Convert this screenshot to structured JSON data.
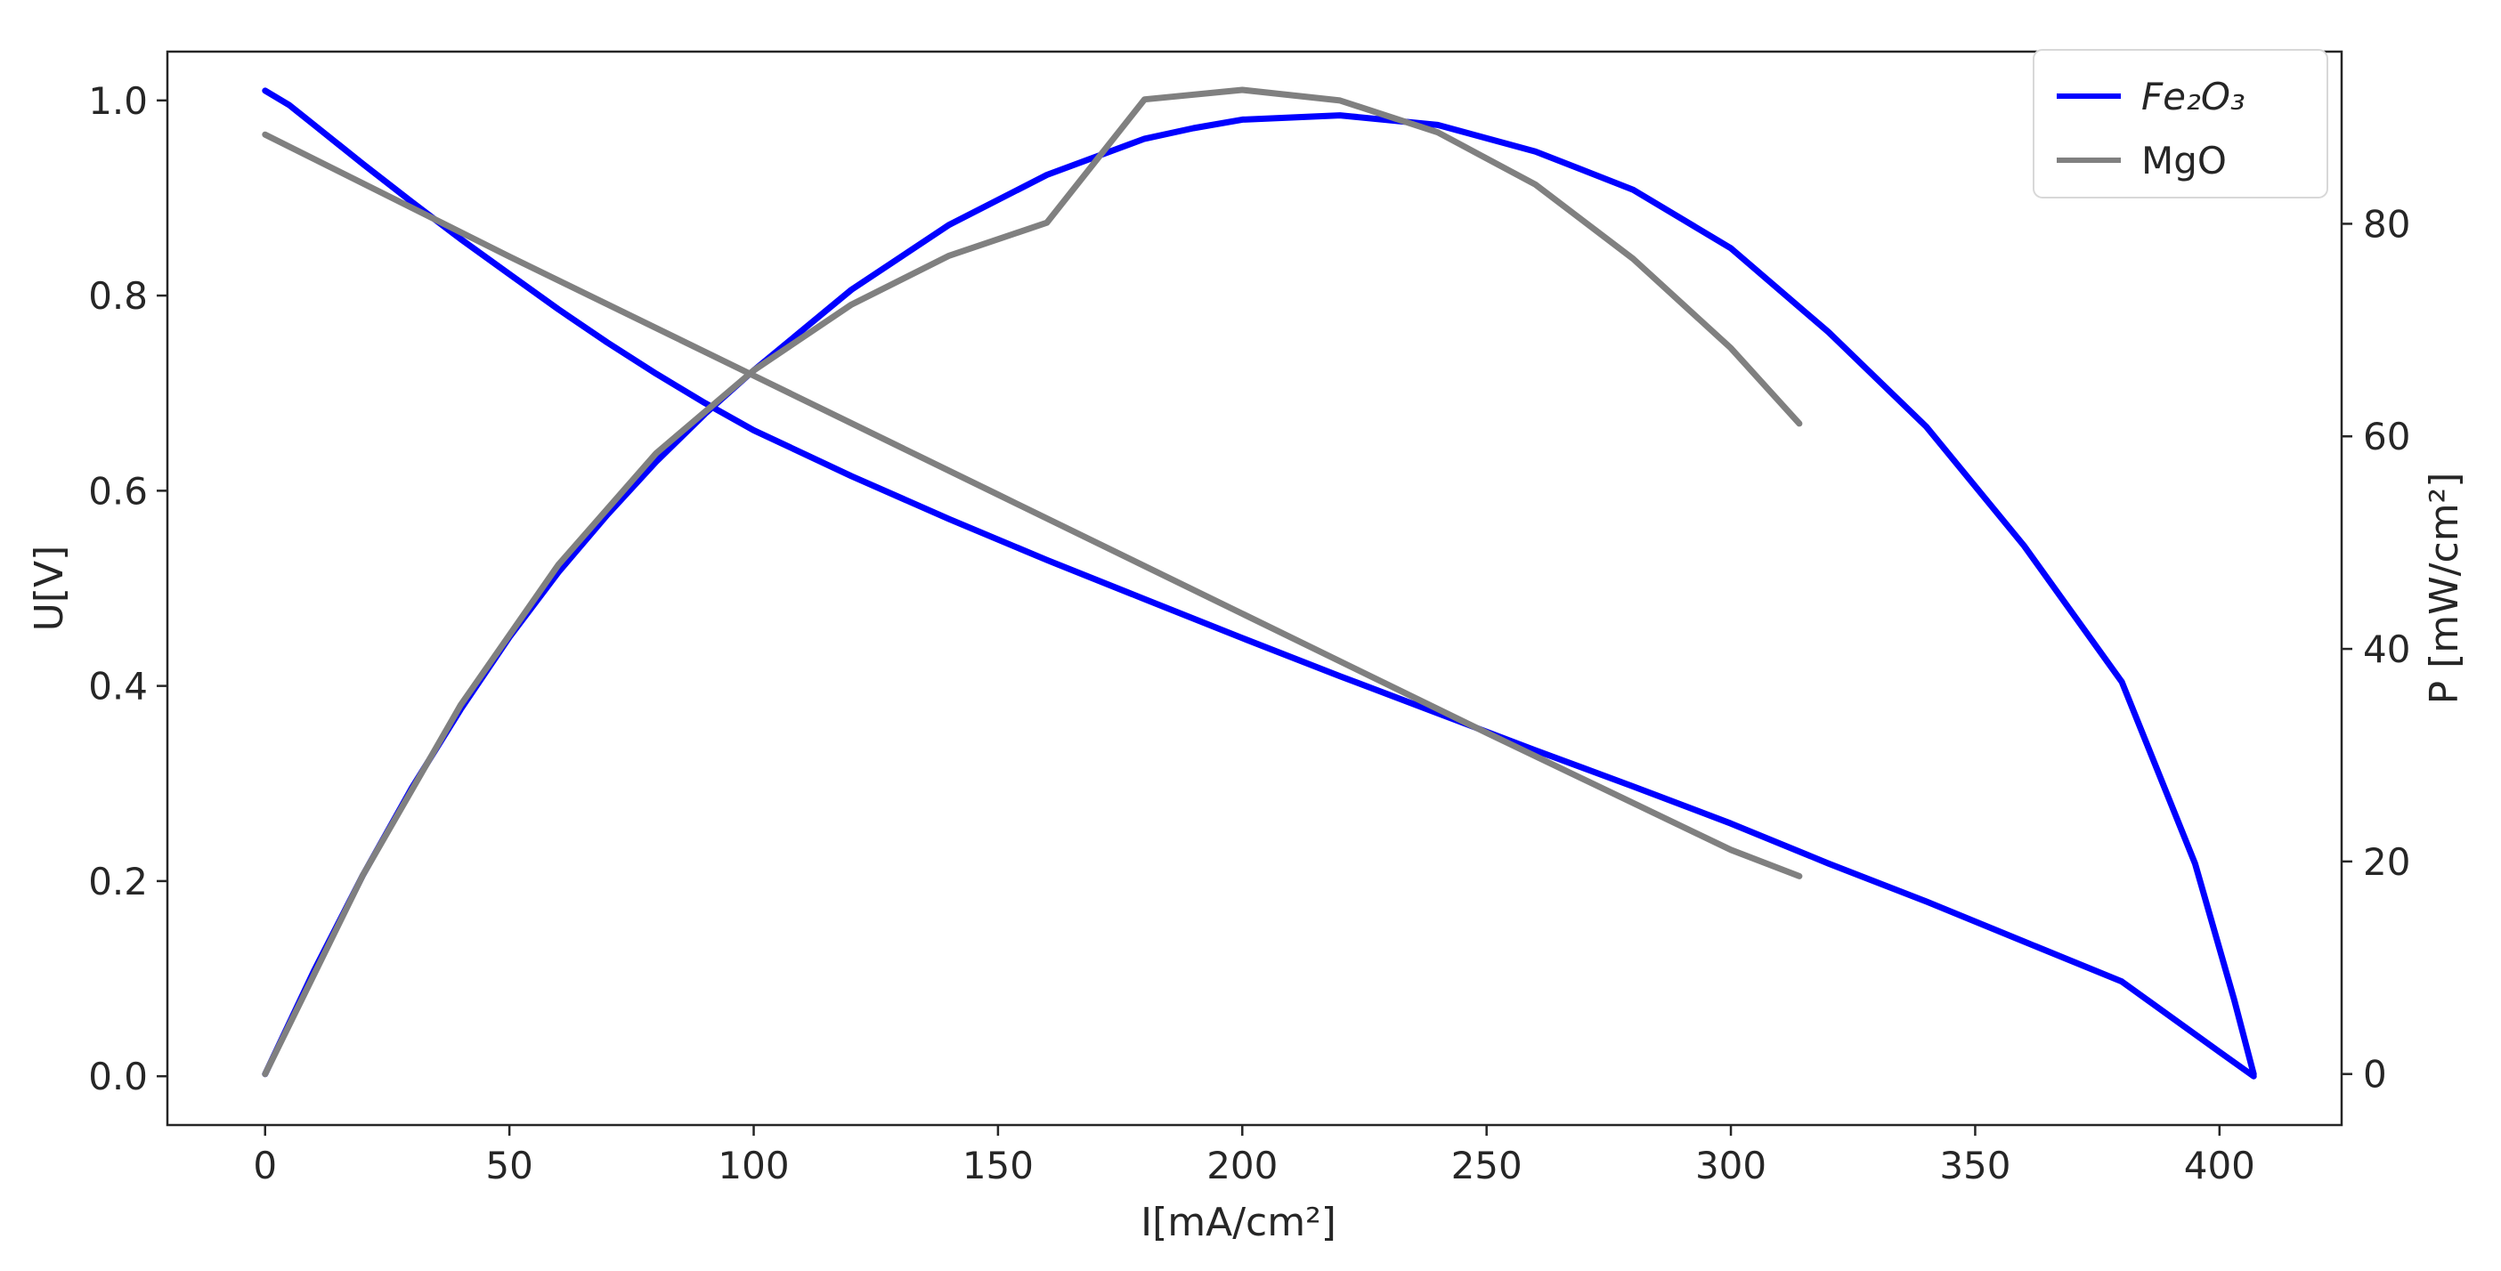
{
  "chart_data": {
    "type": "line",
    "xlabel": "I[mA/cm²]",
    "ylabel": "U[V]",
    "y2label": "P [mW/cm²]",
    "xlim": [
      -20,
      425
    ],
    "ylim": [
      -0.05,
      1.05
    ],
    "y2lim": [
      -4.8,
      96.2
    ],
    "xticks": [
      0,
      50,
      100,
      150,
      200,
      250,
      300,
      350,
      400
    ],
    "yticks": [
      0.0,
      0.2,
      0.4,
      0.6,
      0.8,
      1.0
    ],
    "y2ticks": [
      0,
      20,
      40,
      60,
      80
    ],
    "xtick_labels": [
      "0",
      "50",
      "100",
      "150",
      "200",
      "250",
      "300",
      "350",
      "400"
    ],
    "ytick_labels": [
      "0.0",
      "0.2",
      "0.4",
      "0.6",
      "0.8",
      "1.0"
    ],
    "y2tick_labels": [
      "0",
      "20",
      "40",
      "60",
      "80"
    ],
    "grid": false,
    "legend_position": "top-right",
    "series": [
      {
        "name": "Fe2O3",
        "legend_label": "Fe₂O₃",
        "color": "#0000ff",
        "voltage_curve": {
          "axis": "left",
          "x": [
            0,
            5,
            10,
            20,
            30,
            40,
            50,
            60,
            70,
            80,
            90,
            100,
            120,
            140,
            160,
            180,
            200,
            220,
            240,
            260,
            280,
            300,
            320,
            340,
            360,
            380,
            400,
            407
          ],
          "y": [
            1.01,
            0.995,
            0.975,
            0.935,
            0.896,
            0.858,
            0.822,
            0.786,
            0.752,
            0.72,
            0.69,
            0.662,
            0.615,
            0.571,
            0.529,
            0.489,
            0.449,
            0.41,
            0.372,
            0.334,
            0.297,
            0.259,
            0.218,
            0.179,
            0.138,
            0.097,
            0.025,
            0.0
          ]
        },
        "power_curve": {
          "axis": "right",
          "x": [
            0,
            10,
            20,
            30,
            40,
            50,
            60,
            70,
            80,
            90,
            100,
            120,
            140,
            160,
            180,
            190,
            200,
            220,
            240,
            260,
            280,
            300,
            320,
            340,
            360,
            380,
            395,
            403,
            407
          ],
          "y": [
            0,
            9.7,
            18.7,
            26.9,
            34.3,
            41.1,
            47.2,
            52.6,
            57.6,
            62.1,
            66.2,
            73.8,
            79.9,
            84.6,
            88.0,
            89.0,
            89.8,
            90.2,
            89.3,
            86.8,
            83.2,
            77.7,
            69.8,
            60.9,
            49.7,
            36.9,
            19.8,
            7.0,
            0
          ]
        }
      },
      {
        "name": "MgO",
        "legend_label": "MgO",
        "color": "#808080",
        "voltage_curve": {
          "axis": "left",
          "x": [
            0,
            50,
            100,
            150,
            200,
            250,
            300,
            314
          ],
          "y": [
            0.965,
            0.84,
            0.718,
            0.596,
            0.474,
            0.352,
            0.232,
            0.205
          ]
        },
        "power_curve": {
          "axis": "right",
          "x": [
            0,
            20,
            40,
            60,
            80,
            100,
            120,
            140,
            160,
            180,
            200,
            220,
            240,
            260,
            280,
            300,
            314
          ],
          "y": [
            0,
            18.7,
            34.7,
            47.9,
            58.4,
            66.2,
            72.4,
            77.0,
            80.1,
            91.7,
            92.6,
            91.6,
            88.6,
            83.7,
            76.7,
            68.3,
            61.2
          ]
        }
      }
    ]
  }
}
